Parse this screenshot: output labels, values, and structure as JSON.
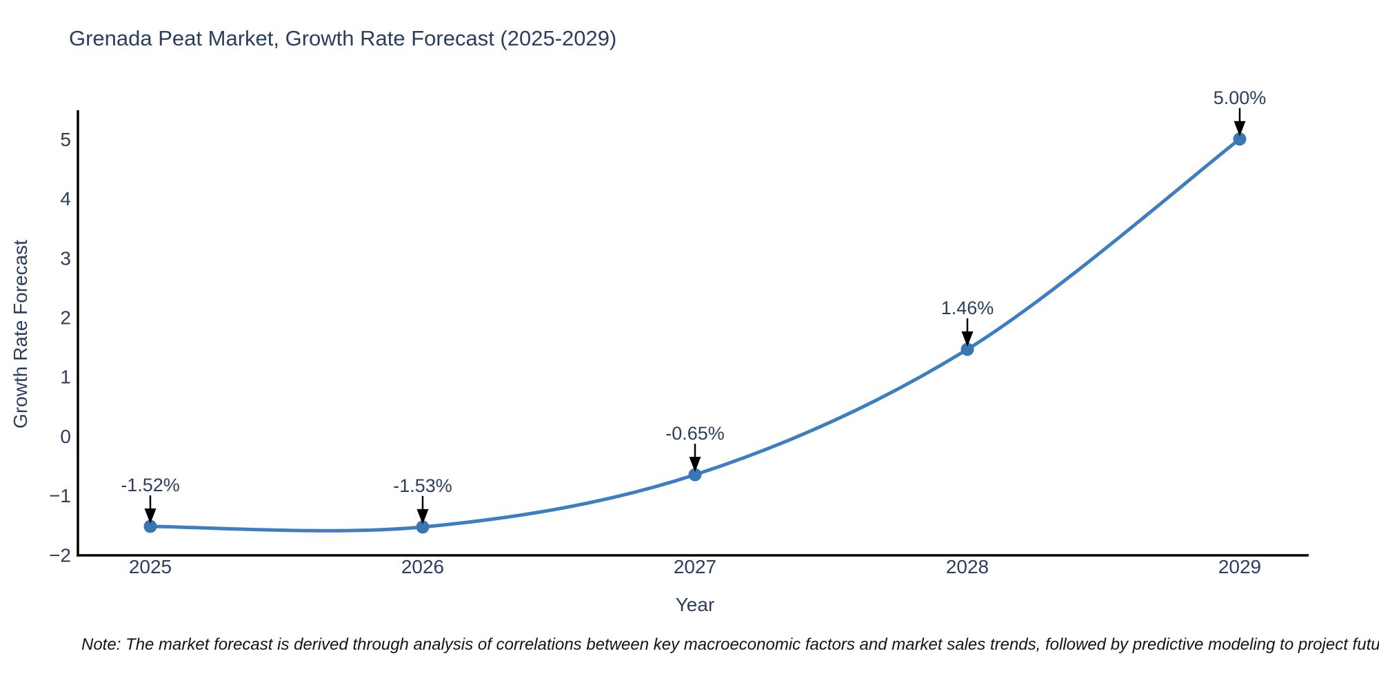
{
  "page": {
    "background_color": "#ffffff"
  },
  "chart_data": {
    "type": "line",
    "title": "Grenada Peat Market, Growth Rate Forecast (2025-2029)",
    "xlabel": "Year",
    "ylabel": "Growth Rate Forecast",
    "categories": [
      2025,
      2026,
      2027,
      2028,
      2029
    ],
    "values": [
      -1.52,
      -1.53,
      -0.65,
      1.46,
      5.0
    ],
    "point_labels": [
      "-1.52%",
      "-1.53%",
      "-0.65%",
      "1.46%",
      "5.00%"
    ],
    "ytick_values": [
      -2,
      -1,
      0,
      1,
      2,
      3,
      4,
      5
    ],
    "ytick_labels": [
      "−2",
      "−1",
      "0",
      "1",
      "2",
      "3",
      "4",
      "5"
    ],
    "ylim": [
      -2,
      5.5
    ],
    "grid": false,
    "legend_position": "none",
    "line_shape": "spline",
    "line_color": "#3d7ebf",
    "marker_color": "#3876b4",
    "axis_color": "#000000",
    "label_color": "#2a3f5f",
    "arrow_color": "#000000",
    "note": "Note: The market forecast is derived through analysis of correlations between key macroeconomic factors and market sales trends, followed by predictive modeling to project future sales"
  }
}
